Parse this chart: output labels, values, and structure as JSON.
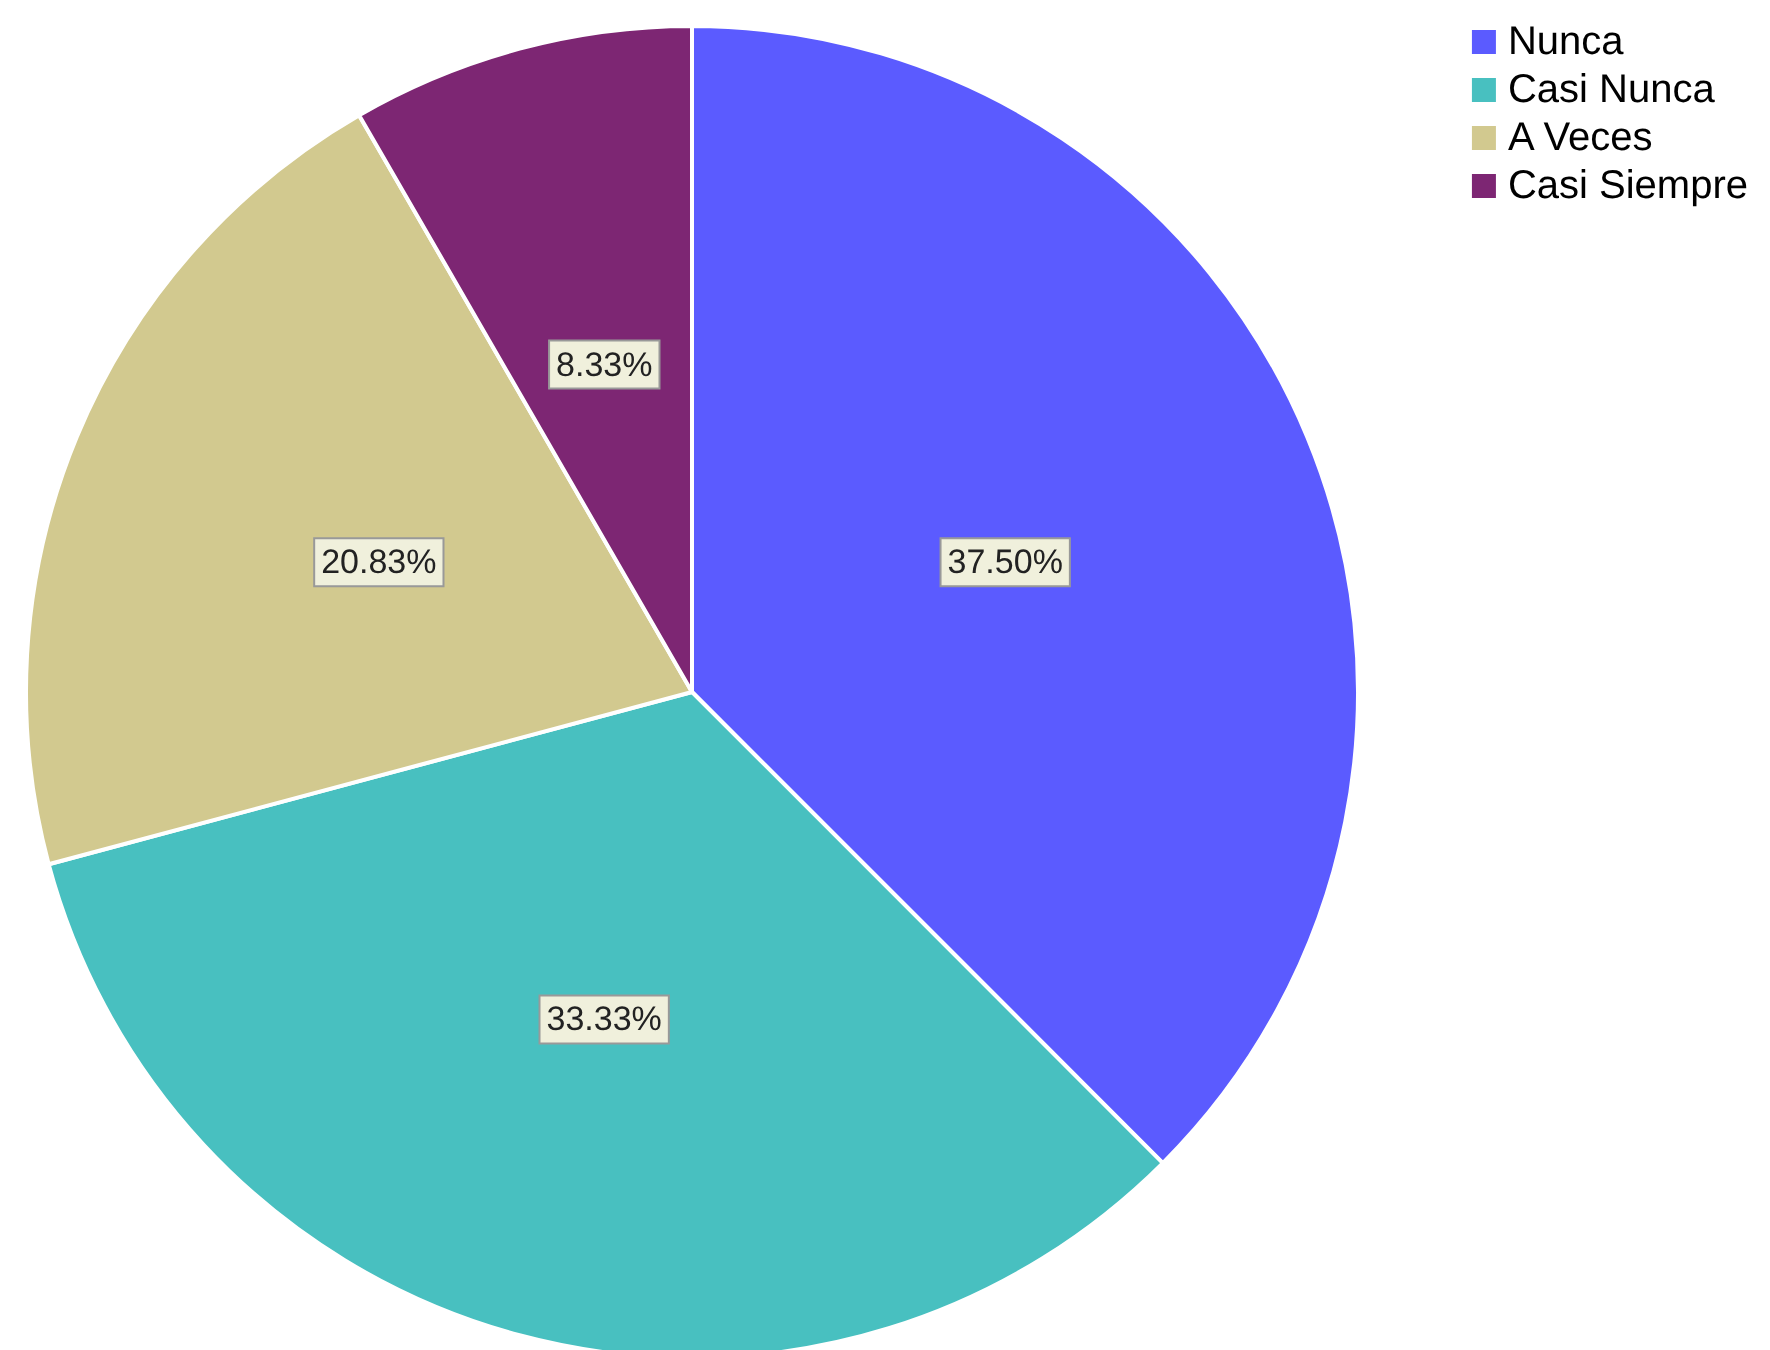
{
  "chart_data": {
    "type": "pie",
    "categories": [
      "Nunca",
      "Casi Nunca",
      "A Veces",
      "Casi Siempre"
    ],
    "values": [
      37.5,
      33.33,
      20.83,
      8.33
    ],
    "value_labels": [
      "37.50%",
      "33.33%",
      "20.83%",
      "8.33%"
    ],
    "colors": [
      "#5b5bff",
      "#48c0c0",
      "#d2c98f",
      "#7d2673"
    ],
    "legend": "top right"
  }
}
